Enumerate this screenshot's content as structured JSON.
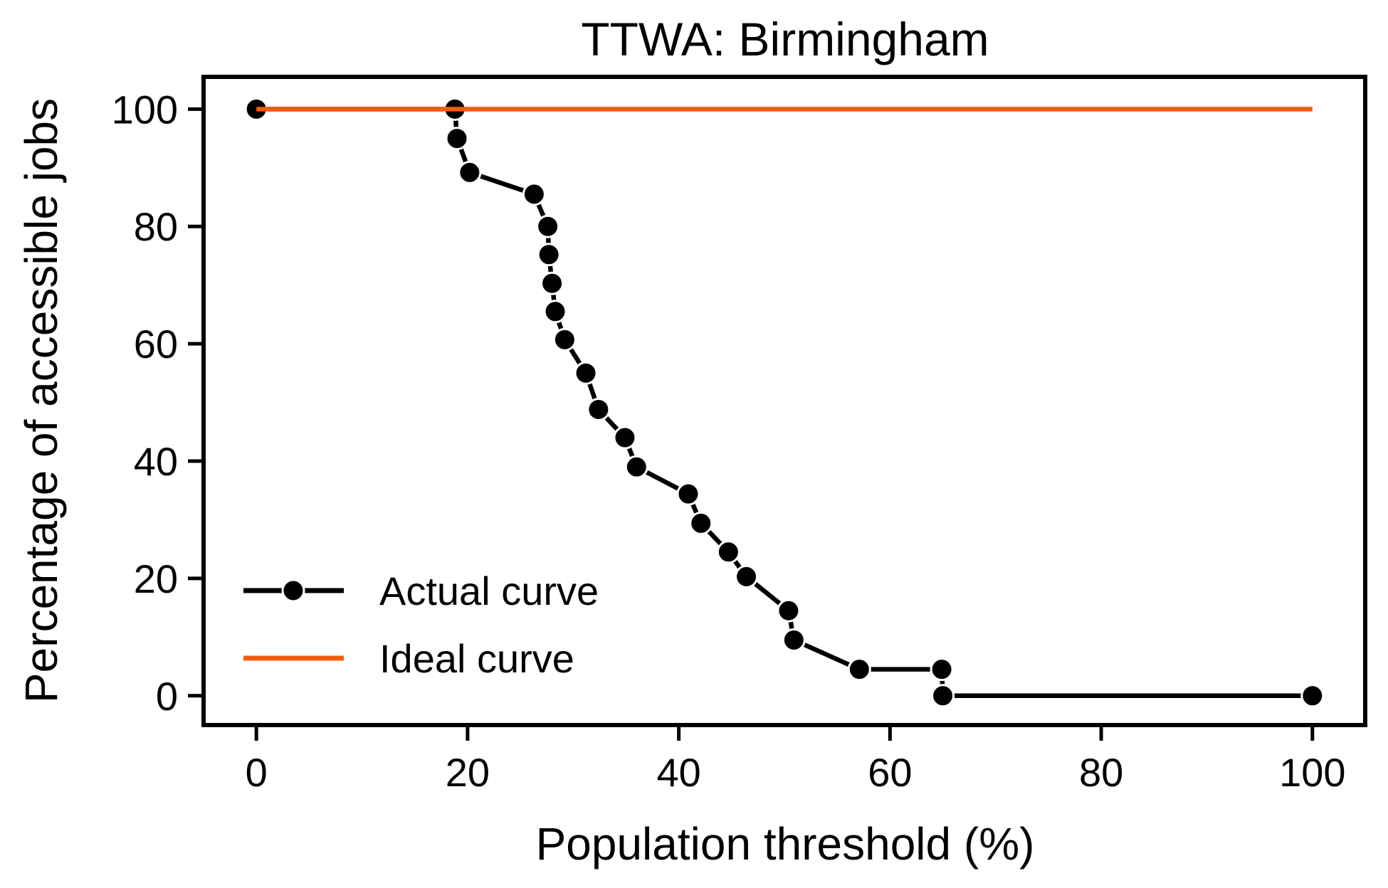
{
  "colors": {
    "actual": "#000000",
    "ideal": "#f25c0f",
    "frame": "#000000",
    "background": "#ffffff"
  },
  "chart_data": {
    "type": "line",
    "title": "TTWA: Birmingham",
    "xlabel": "Population threshold (%)",
    "ylabel": "Percentage of accessible jobs",
    "xlim": [
      -5,
      105
    ],
    "ylim": [
      -5,
      105.5
    ],
    "xticks": [
      0,
      20,
      40,
      60,
      80,
      100
    ],
    "yticks": [
      0,
      20,
      40,
      60,
      80,
      100
    ],
    "xtick_labels": [
      "0",
      "20",
      "40",
      "60",
      "80",
      "100"
    ],
    "ytick_labels": [
      "0",
      "20",
      "40",
      "60",
      "80",
      "100"
    ],
    "grid": false,
    "legend_position": "lower-left",
    "series": [
      {
        "name": "Actual curve",
        "color": "#000000",
        "marker": "circle",
        "points": [
          {
            "x": 0.0,
            "y": 100.0
          },
          {
            "x": 18.8,
            "y": 100.0
          },
          {
            "x": 19.0,
            "y": 95.0
          },
          {
            "x": 20.2,
            "y": 89.2
          },
          {
            "x": 26.3,
            "y": 85.5
          },
          {
            "x": 27.6,
            "y": 80.0
          },
          {
            "x": 27.7,
            "y": 75.2
          },
          {
            "x": 28.0,
            "y": 70.3
          },
          {
            "x": 28.3,
            "y": 65.5
          },
          {
            "x": 29.2,
            "y": 60.7
          },
          {
            "x": 31.2,
            "y": 55.0
          },
          {
            "x": 32.4,
            "y": 48.8
          },
          {
            "x": 34.9,
            "y": 44.0
          },
          {
            "x": 36.0,
            "y": 39.0
          },
          {
            "x": 40.9,
            "y": 34.4
          },
          {
            "x": 42.1,
            "y": 29.4
          },
          {
            "x": 44.7,
            "y": 24.5
          },
          {
            "x": 46.4,
            "y": 20.3
          },
          {
            "x": 50.4,
            "y": 14.5
          },
          {
            "x": 50.9,
            "y": 9.5
          },
          {
            "x": 57.1,
            "y": 4.5
          },
          {
            "x": 64.9,
            "y": 4.5
          },
          {
            "x": 65.0,
            "y": 0.0
          },
          {
            "x": 100.0,
            "y": 0.0
          }
        ]
      },
      {
        "name": "Ideal curve",
        "color": "#f25c0f",
        "marker": "none",
        "points": [
          {
            "x": 0.0,
            "y": 100.0
          },
          {
            "x": 100.0,
            "y": 100.0
          }
        ]
      }
    ]
  }
}
